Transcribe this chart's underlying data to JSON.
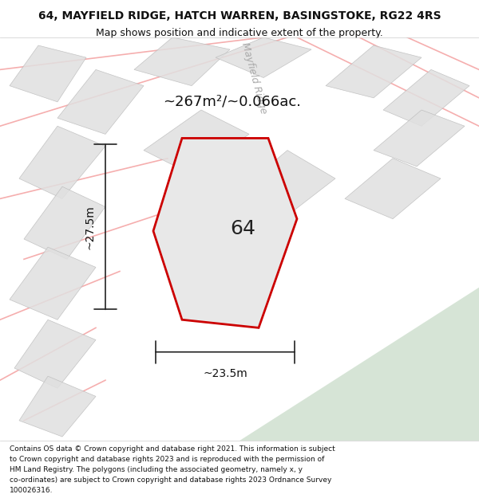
{
  "title": "64, MAYFIELD RIDGE, HATCH WARREN, BASINGSTOKE, RG22 4RS",
  "subtitle": "Map shows position and indicative extent of the property.",
  "area_text": "~267m²/~0.066ac.",
  "width_label": "~23.5m",
  "height_label": "~27.5m",
  "plot_number": "64",
  "bg_color": "#ffffff",
  "map_bg": "#f5f5f5",
  "footer_lines": [
    "Contains OS data © Crown copyright and database right 2021. This information is subject",
    "to Crown copyright and database rights 2023 and is reproduced with the permission of",
    "HM Land Registry. The polygons (including the associated geometry, namely x, y",
    "co-ordinates) are subject to Crown copyright and database rights 2023 Ordnance Survey",
    "100026316."
  ],
  "road_color": "#c5d9c5",
  "street_label": "Mayfield Ridge",
  "pink_line_color": "#f4a0a0",
  "grey_block_color": "#e0e0e0"
}
